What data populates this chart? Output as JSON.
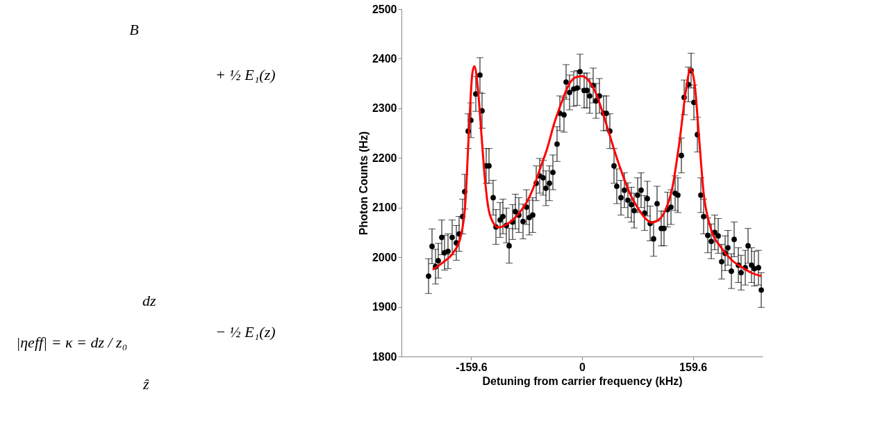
{
  "chart_data": {
    "type": "scatter",
    "xlabel": "Detuning from carrier frequency (kHz)",
    "ylabel": "Photon Counts (Hz)",
    "xlim": [
      -260,
      260
    ],
    "xticks": [
      {
        "value": -159.6,
        "label": "-159.6"
      },
      0,
      {
        "value": 159.6,
        "label": "159.6"
      }
    ],
    "ylim": [
      1800,
      2500
    ],
    "yticks": [
      1800,
      1900,
      2000,
      2100,
      2200,
      2300,
      2400,
      2500
    ],
    "grid": false,
    "annotations": [
      "B⃗",
      "+ ½ E₁(z)",
      "dz",
      "− ½ E₁(z)",
      "|ηeff| = κ = dz / z₀",
      "ẑ"
    ],
    "series": [
      {
        "type": "scatter",
        "color": "#000000",
        "marker": "circle",
        "x": [
          -221,
          -216,
          -211,
          -207,
          -202,
          -198,
          -193,
          -187,
          -181,
          -177,
          -172,
          -169,
          -164,
          -160,
          -153,
          -147,
          -144,
          -138,
          -134,
          -128,
          -124,
          -118,
          -114,
          -109,
          -105,
          -100,
          -96,
          -91,
          -85,
          -80,
          -76,
          -71,
          -66,
          -61,
          -56,
          -52,
          -47,
          -42,
          -36,
          -32,
          -26,
          -23,
          -18,
          -12,
          -7,
          -3,
          3,
          7,
          11,
          16,
          20,
          25,
          31,
          35,
          40,
          46,
          50,
          56,
          61,
          66,
          71,
          75,
          80,
          85,
          90,
          94,
          98,
          103,
          108,
          114,
          118,
          123,
          128,
          134,
          138,
          143,
          147,
          153,
          157,
          161,
          166,
          171,
          175,
          181,
          186,
          191,
          196,
          201,
          206,
          210,
          215,
          219,
          225,
          229,
          235,
          239,
          244,
          248,
          254,
          258
        ],
        "values": [
          1962,
          2022,
          1981,
          1993,
          2040,
          2009,
          2012,
          2040,
          2029,
          2047,
          2082,
          2132,
          2254,
          2276,
          2329,
          2367,
          2295,
          2184,
          2184,
          2120,
          2061,
          2075,
          2082,
          2064,
          2023,
          2071,
          2092,
          2085,
          2072,
          2101,
          2080,
          2085,
          2149,
          2164,
          2160,
          2139,
          2149,
          2171,
          2228,
          2290,
          2287,
          2353,
          2332,
          2339,
          2341,
          2374,
          2336,
          2336,
          2325,
          2346,
          2315,
          2325,
          2290,
          2290,
          2254,
          2184,
          2143,
          2120,
          2135,
          2115,
          2106,
          2094,
          2125,
          2135,
          2089,
          2118,
          2068,
          2037,
          2108,
          2058,
          2058,
          2096,
          2101,
          2129,
          2125,
          2205,
          2322,
          2348,
          2376,
          2312,
          2247,
          2125,
          2082,
          2044,
          2032,
          2050,
          2043,
          1991,
          2008,
          2019,
          1972,
          2036,
          1984,
          1969,
          1979,
          2023,
          1984,
          1977,
          1979,
          1934
        ],
        "errors": [
          35,
          35,
          35,
          35,
          35,
          35,
          35,
          35,
          35,
          35,
          35,
          35,
          35,
          35,
          35,
          35,
          35,
          35,
          35,
          35,
          35,
          35,
          35,
          35,
          35,
          35,
          35,
          35,
          35,
          35,
          35,
          35,
          35,
          35,
          35,
          35,
          35,
          35,
          35,
          35,
          35,
          35,
          35,
          35,
          35,
          35,
          35,
          35,
          35,
          35,
          35,
          35,
          35,
          35,
          35,
          35,
          35,
          35,
          35,
          35,
          35,
          35,
          35,
          35,
          35,
          35,
          35,
          35,
          35,
          35,
          35,
          35,
          35,
          35,
          35,
          35,
          35,
          35,
          35,
          35,
          35,
          35,
          35,
          35,
          35,
          35,
          35,
          35,
          35,
          35,
          35,
          35,
          35,
          35,
          35,
          35,
          35,
          35,
          35,
          35
        ]
      },
      {
        "type": "line",
        "color": "#ff0000",
        "line_style": "solid",
        "x": [
          -215,
          -200,
          -185,
          -175,
          -168,
          -163,
          -158,
          -155,
          -150,
          -145,
          -140,
          -135,
          -128,
          -120,
          -110,
          -100,
          -90,
          -80,
          -70,
          -60,
          -50,
          -40,
          -30,
          -20,
          -10,
          0,
          10,
          20,
          30,
          40,
          50,
          60,
          70,
          80,
          90,
          100,
          110,
          120,
          130,
          140,
          150,
          156,
          162,
          168,
          175,
          185,
          200,
          215,
          230,
          245,
          258
        ],
        "values": [
          1975,
          1990,
          2010,
          2040,
          2110,
          2250,
          2370,
          2385,
          2340,
          2250,
          2160,
          2100,
          2070,
          2060,
          2065,
          2075,
          2090,
          2110,
          2140,
          2180,
          2220,
          2270,
          2310,
          2345,
          2362,
          2365,
          2355,
          2330,
          2290,
          2245,
          2200,
          2160,
          2125,
          2100,
          2080,
          2070,
          2075,
          2095,
          2140,
          2230,
          2340,
          2380,
          2350,
          2250,
          2130,
          2060,
          2020,
          1995,
          1980,
          1968,
          1962
        ]
      }
    ]
  }
}
